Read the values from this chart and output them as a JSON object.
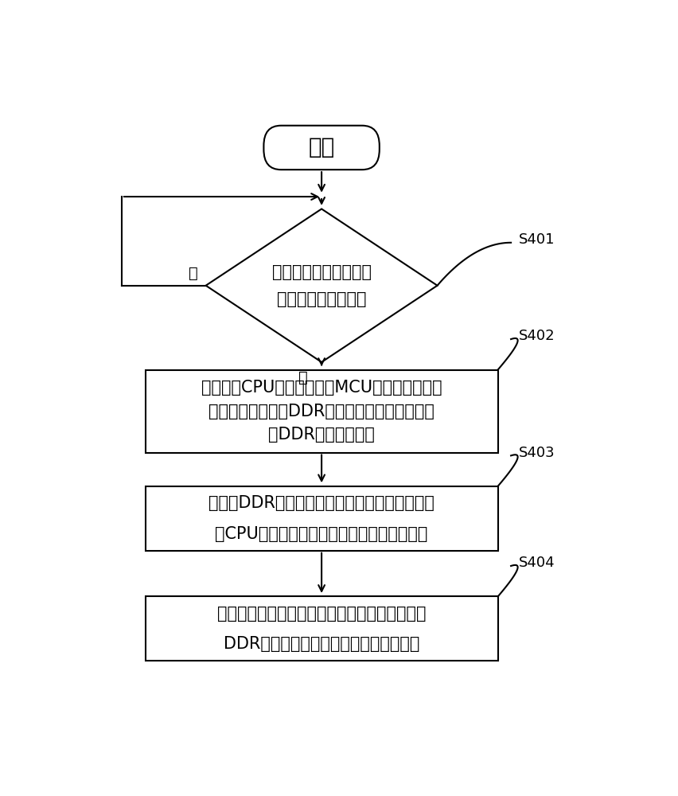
{
  "bg_color": "#ffffff",
  "line_color": "#000000",
  "text_color": "#000000",
  "start_text": "开始",
  "diamond_text_line1": "检测看门狗计时器的计",
  "diamond_text_line2": "数值是否超出预设值",
  "box1_lines": [
    "利用系统CPU中的微处理器MCU控制双倍速率同",
    "步动态随机存储器DDR采用自刷新的方式保存所",
    "述DDR中的内存数据"
  ],
  "box2_lines": [
    "当所述DDR完成其内部数据保存后，控制所述系",
    "统CPU中的应用处理器进入系统程序运行状态"
  ],
  "box3_lines": [
    "在所述应用处理器进入系统程序运行后，将所述",
    "DDR中的内存数据存储到预设存储介质中"
  ],
  "label_no": "否",
  "label_yes": "是",
  "s401": "S401",
  "s402": "S402",
  "s403": "S403",
  "s404": "S404",
  "font_size_start": 20,
  "font_size_main": 15,
  "font_size_label": 14,
  "font_size_step": 13,
  "lw": 1.5,
  "arrow_scale": 14
}
